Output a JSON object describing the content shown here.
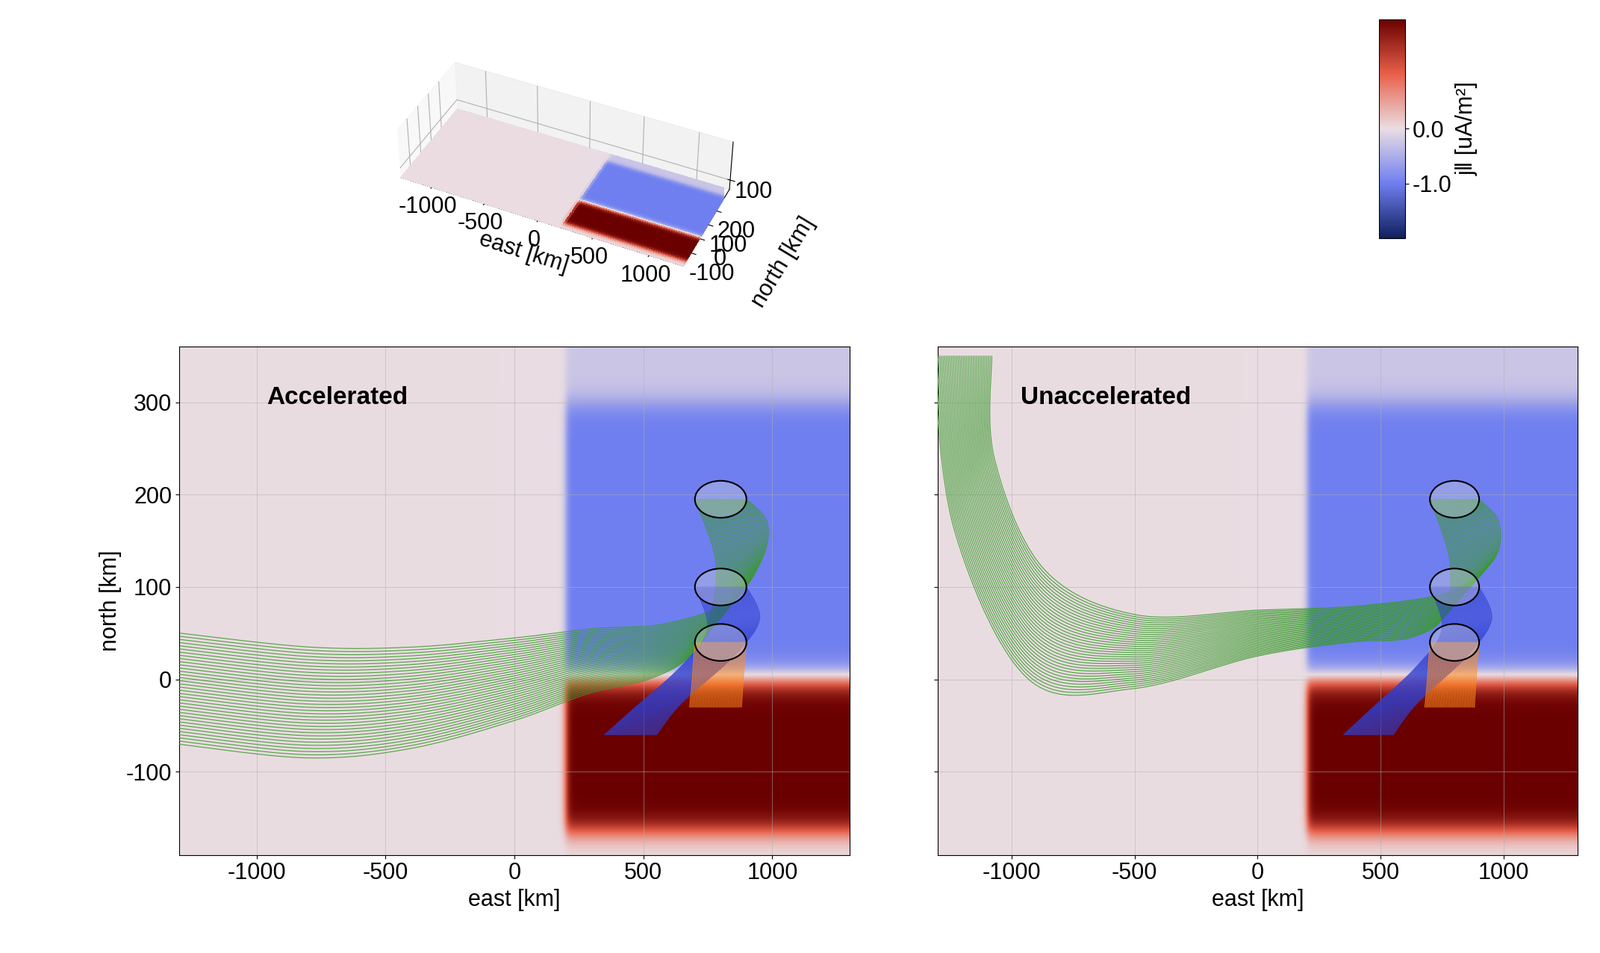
{
  "chart_data": [
    {
      "type": "surface3d",
      "xlabel": "east [km]",
      "ylabel": "north [km]",
      "xlim": [
        -1300,
        1300
      ],
      "ylim": [
        -190,
        360
      ],
      "zlim": [
        0,
        500
      ],
      "xticks": [
        -1000,
        -500,
        0,
        500,
        1000
      ],
      "yticks": [
        -100,
        0,
        100,
        200
      ],
      "zticks": [
        100
      ],
      "grid": true,
      "colorbar": {
        "label": "j‖ [uA/m²]",
        "lim": [
          -2,
          2
        ],
        "ticks": [
          {
            "value": 0,
            "label": "0.0"
          },
          {
            "value": -1,
            "label": "-1.0"
          }
        ]
      }
    },
    {
      "type": "map",
      "text": "Accelerated",
      "xlabel": "east [km]",
      "ylabel": "north [km]",
      "xlim": [
        -1300,
        1300
      ],
      "ylim": [
        -190,
        360
      ],
      "xticks": [
        -1000,
        -500,
        0,
        500,
        1000
      ],
      "yticks": [
        -100,
        0,
        100,
        200,
        300
      ],
      "grid": true,
      "traces": [
        {
          "color": "#3a9a2e",
          "east": [
            800,
            880,
            860,
            760,
            550,
            300,
            0,
            -400,
            -800,
            -1300
          ],
          "north": [
            195,
            150,
            100,
            55,
            30,
            20,
            0,
            -20,
            -25,
            -10
          ],
          "half_width_east": [
            100,
            100,
            100,
            80,
            30,
            10,
            5,
            5,
            5,
            5
          ],
          "half_width_north": [
            0,
            20,
            30,
            30,
            30,
            35,
            45,
            55,
            60,
            60
          ]
        },
        {
          "color": "#3040d0",
          "east": [
            800,
            850,
            750,
            550,
            450
          ],
          "north": [
            100,
            60,
            20,
            -30,
            -60
          ],
          "half_width_east": [
            100,
            100,
            100,
            100,
            100
          ],
          "half_width_north": [
            0,
            5,
            5,
            5,
            0
          ]
        },
        {
          "color": "#ff8c1a",
          "east": [
            800,
            790,
            780
          ],
          "north": [
            40,
            5,
            -30
          ],
          "half_width_east": [
            100,
            100,
            100
          ],
          "half_width_north": [
            0,
            5,
            0
          ]
        }
      ],
      "ellipses": [
        {
          "east": 800,
          "north": 195,
          "half_east": 100,
          "half_north": 20
        },
        {
          "east": 800,
          "north": 100,
          "half_east": 100,
          "half_north": 20
        },
        {
          "east": 800,
          "north": 40,
          "half_east": 100,
          "half_north": 20
        }
      ]
    },
    {
      "type": "map",
      "text": "Unaccelerated",
      "xlabel": "east [km]",
      "xlim": [
        -1300,
        1300
      ],
      "ylim": [
        -190,
        360
      ],
      "xticks": [
        -1000,
        -500,
        0,
        500,
        1000
      ],
      "yticks": [
        -100,
        0,
        100,
        200,
        300
      ],
      "grid": true,
      "tick_labels": "x",
      "traces": [
        {
          "color": "#3a9a2e",
          "east": [
            800,
            880,
            860,
            700,
            400,
            0,
            -500,
            -900,
            -1150,
            -1200
          ],
          "north": [
            195,
            150,
            100,
            70,
            60,
            50,
            30,
            60,
            200,
            350
          ],
          "half_width_east": [
            100,
            100,
            100,
            80,
            30,
            5,
            5,
            30,
            80,
            120
          ],
          "half_width_north": [
            0,
            20,
            30,
            25,
            20,
            25,
            40,
            60,
            40,
            0
          ]
        },
        {
          "color": "#3040d0",
          "east": [
            800,
            850,
            750,
            550,
            450
          ],
          "north": [
            100,
            60,
            20,
            -30,
            -60
          ],
          "half_width_east": [
            100,
            100,
            100,
            100,
            100
          ],
          "half_width_north": [
            0,
            5,
            5,
            5,
            0
          ]
        },
        {
          "color": "#ff8c1a",
          "east": [
            800,
            790,
            780
          ],
          "north": [
            40,
            5,
            -30
          ],
          "half_width_east": [
            100,
            100,
            100
          ],
          "half_width_north": [
            0,
            5,
            0
          ]
        }
      ],
      "ellipses": [
        {
          "east": 800,
          "north": 195,
          "half_east": 100,
          "half_north": 20
        },
        {
          "east": 800,
          "north": 100,
          "half_east": 100,
          "half_north": 20
        },
        {
          "east": 800,
          "north": 40,
          "half_east": 100,
          "half_north": 20
        }
      ]
    }
  ],
  "current_map": {
    "background_j": 0.0,
    "regions": [
      {
        "east": [
          200,
          1400
        ],
        "north": [
          0,
          300
        ],
        "j": -1.0
      },
      {
        "east": [
          200,
          1400
        ],
        "north": [
          300,
          420
        ],
        "j": -0.25
      },
      {
        "east": [
          200,
          1400
        ],
        "north": [
          -165,
          0
        ],
        "j": 2.0
      }
    ]
  }
}
